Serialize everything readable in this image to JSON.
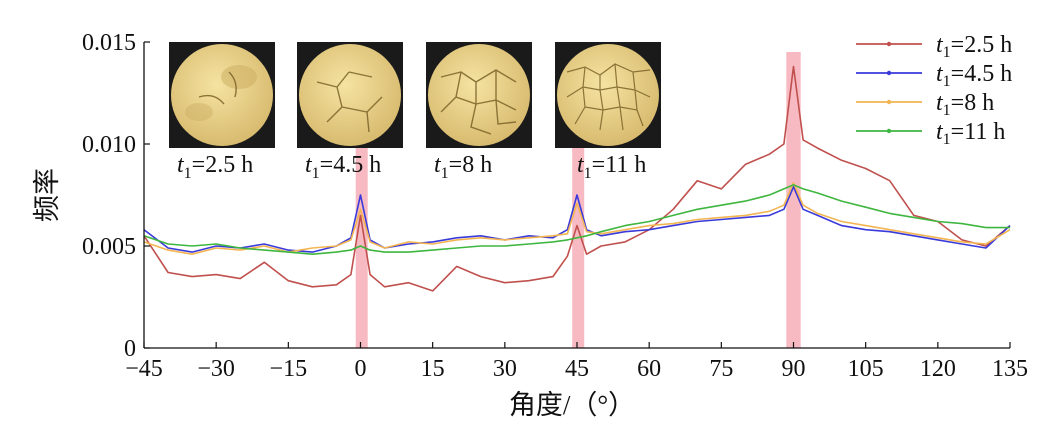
{
  "chart_data": {
    "type": "line",
    "xlabel": "角度/（°）",
    "ylabel": "频率",
    "xlim": [
      -45,
      135
    ],
    "ylim": [
      0,
      0.015
    ],
    "x_ticks": [
      "−45",
      "−30",
      "−15",
      "0",
      "15",
      "30",
      "45",
      "60",
      "75",
      "90",
      "105",
      "120",
      "135"
    ],
    "y_ticks": [
      "0",
      "0.005",
      "0.010",
      "0.015"
    ],
    "legend_position": "top-right",
    "highlight_bands": [
      [
        -1,
        1.5
      ],
      [
        44,
        46.5
      ],
      [
        88.5,
        91.5
      ]
    ],
    "highlight_color": "#f4a3ad",
    "x": [
      -45,
      -40,
      -35,
      -30,
      -25,
      -20,
      -15,
      -10,
      -5,
      -2,
      0,
      2,
      5,
      10,
      15,
      20,
      25,
      30,
      35,
      40,
      43,
      45,
      47,
      50,
      55,
      60,
      65,
      70,
      75,
      80,
      85,
      88,
      90,
      92,
      95,
      100,
      105,
      110,
      115,
      120,
      125,
      130,
      135
    ],
    "series": [
      {
        "name": "t1=2.5 h",
        "color": "#c0504d",
        "values": [
          0.0055,
          0.0037,
          0.0035,
          0.0036,
          0.0034,
          0.0042,
          0.0033,
          0.003,
          0.0031,
          0.0036,
          0.0065,
          0.0036,
          0.003,
          0.0032,
          0.0028,
          0.004,
          0.0035,
          0.0032,
          0.0033,
          0.0035,
          0.0045,
          0.006,
          0.0046,
          0.005,
          0.0052,
          0.0058,
          0.0068,
          0.0082,
          0.0078,
          0.009,
          0.0095,
          0.01,
          0.0138,
          0.0102,
          0.0098,
          0.0092,
          0.0088,
          0.0082,
          0.0065,
          0.0062,
          0.0053,
          0.005,
          0.006
        ]
      },
      {
        "name": "t1=4.5 h",
        "color": "#3a3adb",
        "values": [
          0.0058,
          0.0049,
          0.0047,
          0.005,
          0.0049,
          0.0051,
          0.0048,
          0.0047,
          0.005,
          0.0054,
          0.0075,
          0.0053,
          0.0049,
          0.0051,
          0.0052,
          0.0054,
          0.0055,
          0.0053,
          0.0055,
          0.0054,
          0.0058,
          0.0075,
          0.0058,
          0.0055,
          0.0057,
          0.0058,
          0.006,
          0.0062,
          0.0063,
          0.0064,
          0.0065,
          0.0068,
          0.0079,
          0.0068,
          0.0065,
          0.006,
          0.0058,
          0.0057,
          0.0055,
          0.0053,
          0.0051,
          0.0049,
          0.006
        ]
      },
      {
        "name": "t1=8 h",
        "color": "#f3b552",
        "values": [
          0.0052,
          0.0048,
          0.0046,
          0.0049,
          0.0048,
          0.005,
          0.0047,
          0.0049,
          0.005,
          0.0053,
          0.0068,
          0.0052,
          0.0049,
          0.0052,
          0.0051,
          0.0053,
          0.0054,
          0.0053,
          0.0054,
          0.0055,
          0.0056,
          0.0071,
          0.0057,
          0.0056,
          0.0058,
          0.006,
          0.0061,
          0.0063,
          0.0064,
          0.0065,
          0.0067,
          0.007,
          0.0081,
          0.007,
          0.0066,
          0.0062,
          0.006,
          0.0058,
          0.0056,
          0.0054,
          0.0052,
          0.0051,
          0.0058
        ]
      },
      {
        "name": "t1=11 h",
        "color": "#3fb63f",
        "values": [
          0.0055,
          0.0051,
          0.005,
          0.0051,
          0.0049,
          0.0048,
          0.0047,
          0.0046,
          0.0047,
          0.0048,
          0.005,
          0.0048,
          0.0047,
          0.0047,
          0.0048,
          0.0049,
          0.005,
          0.005,
          0.0051,
          0.0052,
          0.0053,
          0.0054,
          0.0055,
          0.0057,
          0.006,
          0.0062,
          0.0065,
          0.0068,
          0.007,
          0.0072,
          0.0075,
          0.0078,
          0.008,
          0.0078,
          0.0076,
          0.0072,
          0.0069,
          0.0066,
          0.0064,
          0.0062,
          0.0061,
          0.0059,
          0.0059
        ]
      }
    ],
    "legend": [
      {
        "var": "t",
        "sub": "1",
        "rest": "=2.5 h"
      },
      {
        "var": "t",
        "sub": "1",
        "rest": "=4.5 h"
      },
      {
        "var": "t",
        "sub": "1",
        "rest": "=8 h"
      },
      {
        "var": "t",
        "sub": "1",
        "rest": "=11 h"
      }
    ],
    "insets": [
      {
        "var": "t",
        "sub": "1",
        "rest": "=2.5 h",
        "image": "soil-sample-crack-image"
      },
      {
        "var": "t",
        "sub": "1",
        "rest": "=4.5 h",
        "image": "soil-sample-crack-image"
      },
      {
        "var": "t",
        "sub": "1",
        "rest": "=8 h",
        "image": "soil-sample-crack-image"
      },
      {
        "var": "t",
        "sub": "1",
        "rest": "=11 h",
        "image": "soil-sample-crack-image"
      }
    ]
  }
}
